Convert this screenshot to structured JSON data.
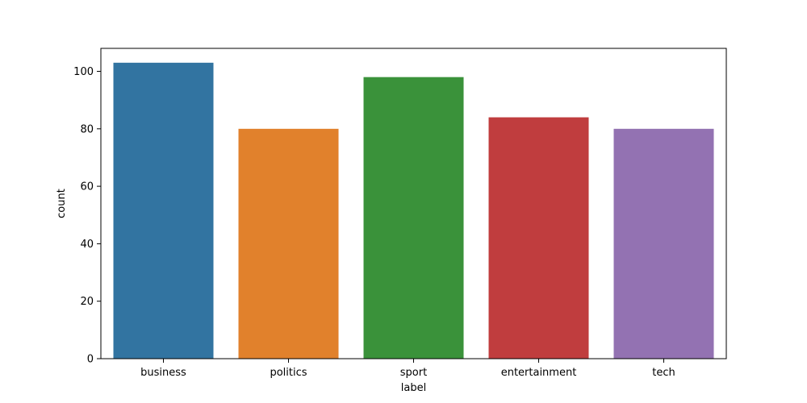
{
  "chart_data": {
    "type": "bar",
    "categories": [
      "business",
      "politics",
      "sport",
      "entertainment",
      "tech"
    ],
    "values": [
      103,
      80,
      98,
      84,
      80
    ],
    "colors": [
      "#3274a1",
      "#e1812c",
      "#3a923a",
      "#c03d3e",
      "#9372b2"
    ],
    "xlabel": "label",
    "ylabel": "count",
    "ylim": [
      0,
      108
    ],
    "yticks": [
      0,
      20,
      40,
      60,
      80,
      100
    ],
    "grid": false,
    "legend": "none"
  }
}
